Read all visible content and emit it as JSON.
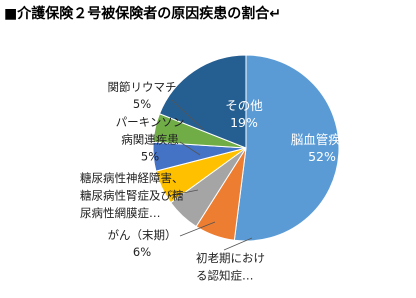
{
  "chart_data": {
    "type": "pie",
    "title": "■介護保険２号被保険者の原因疾患の割合↵",
    "categories": [
      "脳血管疾患",
      "初老期におけ\nる認知症…",
      "がん（末期）",
      "糖尿病性神経障害、\n糖尿病性腎症及び糖\n尿病性網膜症…",
      "パーキンソン\n病関連疾患",
      "関節リウマチ",
      "その他"
    ],
    "values": [
      52,
      7,
      6,
      6,
      5,
      5,
      19
    ],
    "value_labels": [
      "52%",
      null,
      "6%",
      null,
      "5%",
      "5%",
      "19%"
    ],
    "colors": [
      "#5b9bd5",
      "#ed7d31",
      "#a5a5a5",
      "#ffc000",
      "#4472c4",
      "#70ad47",
      "#255e91"
    ]
  }
}
